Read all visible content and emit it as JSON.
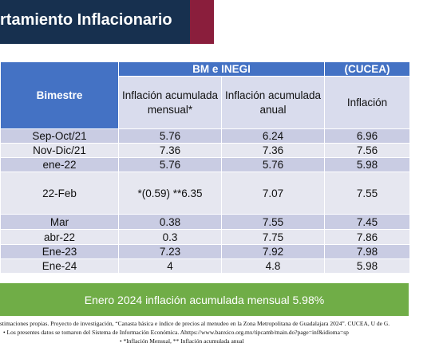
{
  "header": {
    "title": "rtamiento Inflacionario"
  },
  "table": {
    "group_headers": [
      "BM e INEGI",
      "(CUCEA)"
    ],
    "row_header_label": "Bimestre",
    "sub_headers": [
      "Inflación acumulada mensual*",
      "Inflación acumulada anual",
      "Inflación"
    ],
    "rows": [
      {
        "label": "Sep-Oct/21",
        "mensual": "5.76",
        "anual": "6.24",
        "cucea": "6.96"
      },
      {
        "label": "Nov-Dic/21",
        "mensual": "7.36",
        "anual": "7.36",
        "cucea": "7.56"
      },
      {
        "label": "ene-22",
        "mensual": "5.76",
        "anual": "5.76",
        "cucea": "5.98"
      },
      {
        "label": "22-Feb",
        "mensual": "*(0.59) **6.35",
        "anual": "7.07",
        "cucea": "7.55"
      },
      {
        "label": "Mar",
        "mensual": "0.38",
        "anual": "7.55",
        "cucea": "7.45"
      },
      {
        "label": "abr-22",
        "mensual": "0.3",
        "anual": "7.75",
        "cucea": "7.86"
      },
      {
        "label": "Ene-23",
        "mensual": "7.23",
        "anual": "7.92",
        "cucea": "7.98"
      },
      {
        "label": "Ene-24",
        "mensual": "4",
        "anual": "4.8",
        "cucea": "5.98"
      }
    ]
  },
  "banner": {
    "text": "Enero 2024 inflación acumulada mensual 5.98%"
  },
  "notes": [
    "stimaciones propias. Proyecto de investigación, “Canasta básica e índice de precios al menudeo en la Zona Metropolitana de Guadalajara 2024”. CUCEA, U de G.",
    "•     Los presentes datos se tomaron del Sistema de Información Económica.  Ahttps://www.banxico.org.mx/tipcamb/main.do?page=inf&idioma=sp",
    "•          *Inflación Mensual, ** Inflación acumulada anual"
  ],
  "colors": {
    "title_bg": "#17304f",
    "accent_maroon": "#8a1e3c",
    "header_blue": "#4472c4",
    "row_dark": "#c9cce3",
    "row_light": "#e6e7f0",
    "banner_green": "#70ad47"
  }
}
